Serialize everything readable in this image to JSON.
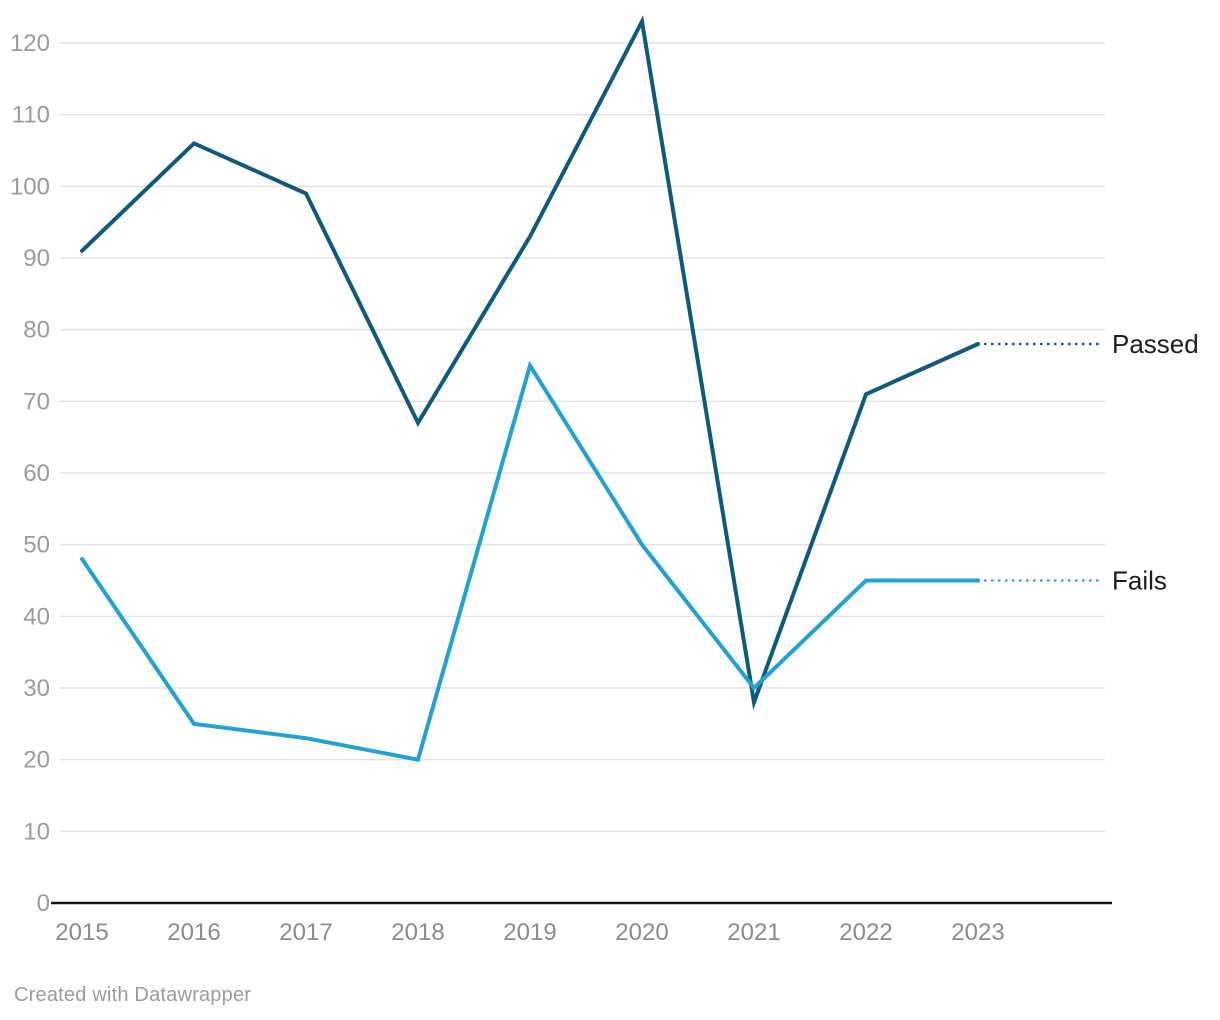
{
  "chart_data": {
    "type": "line",
    "x": [
      "2015",
      "2016",
      "2017",
      "2018",
      "2019",
      "2020",
      "2021",
      "2022",
      "2023"
    ],
    "series": [
      {
        "name": "Passed",
        "color": "#0e5a7c",
        "values": [
          91,
          106,
          99,
          67,
          93,
          123,
          28,
          71,
          78
        ]
      },
      {
        "name": "Fails",
        "color": "#20a3d3",
        "values": [
          48,
          25,
          23,
          20,
          75,
          50,
          30,
          45,
          45
        ]
      }
    ],
    "title": "",
    "xlabel": "",
    "ylabel": "",
    "ylim": [
      0,
      120
    ],
    "yticks": [
      0,
      10,
      20,
      30,
      40,
      50,
      60,
      70,
      80,
      90,
      100,
      110,
      120
    ],
    "grid": true,
    "legend_position": "right-end-labels"
  },
  "axis_style": {
    "gridline_color": "#e3e3e3",
    "baseline_color": "#111111",
    "ytick_label_color": "#9b9b9b",
    "xtick_label_color": "#8b8b8b",
    "end_label_color": "#1d1d1d"
  },
  "footer": {
    "credit": "Created with Datawrapper"
  }
}
